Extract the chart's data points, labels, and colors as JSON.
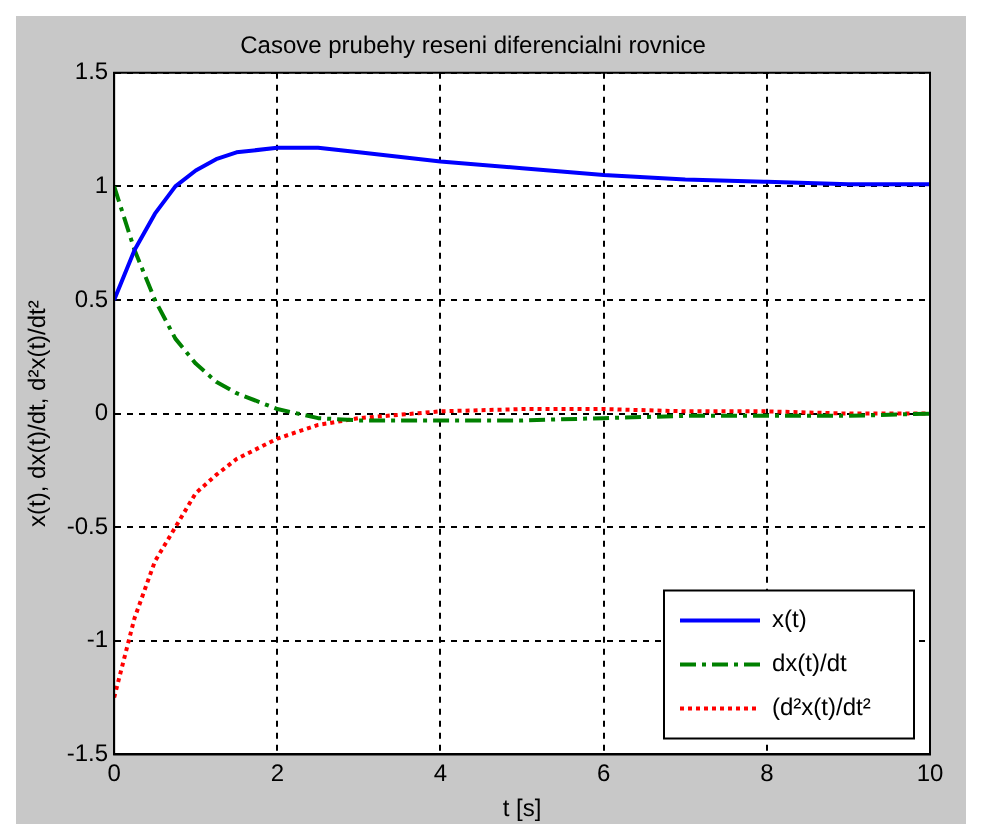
{
  "chart_data": {
    "type": "line",
    "title": "Casove prubehy reseni diferencialni rovnice",
    "xlabel": "t [s]",
    "ylabel": "x(t), dx(t)/dt, d²x(t)/dt²",
    "x": [
      0,
      0.25,
      0.5,
      0.75,
      1,
      1.25,
      1.5,
      2,
      2.5,
      3,
      4,
      5,
      6,
      7,
      8,
      9,
      10
    ],
    "series": [
      {
        "name": "x(t)",
        "color": "#0000ff",
        "line_style": "solid",
        "values": [
          0.5,
          0.72,
          0.88,
          1.0,
          1.07,
          1.12,
          1.15,
          1.17,
          1.17,
          1.15,
          1.11,
          1.08,
          1.05,
          1.03,
          1.02,
          1.01,
          1.01
        ]
      },
      {
        "name": "dx(t)/dt",
        "color": "#008000",
        "line_style": "dashed",
        "values": [
          1.0,
          0.72,
          0.5,
          0.33,
          0.22,
          0.14,
          0.09,
          0.02,
          -0.02,
          -0.03,
          -0.03,
          -0.03,
          -0.02,
          -0.01,
          -0.01,
          -0.01,
          0
        ]
      },
      {
        "name": "(d²x(t)/dt²",
        "color": "#ff0000",
        "line_style": "dotted",
        "values": [
          -1.25,
          -0.9,
          -0.65,
          -0.5,
          -0.35,
          -0.27,
          -0.2,
          -0.11,
          -0.05,
          -0.02,
          0.01,
          0.02,
          0.02,
          0.01,
          0.01,
          0,
          0
        ]
      }
    ],
    "xlim": [
      0,
      10
    ],
    "xticks": [
      0,
      2,
      4,
      6,
      8,
      10
    ],
    "ylim": [
      -1.5,
      1.5
    ],
    "yticks": [
      -1.5,
      -1,
      -0.5,
      0,
      0.5,
      1,
      1.5
    ],
    "grid": true,
    "legend": "bottom right",
    "marker": "none"
  }
}
